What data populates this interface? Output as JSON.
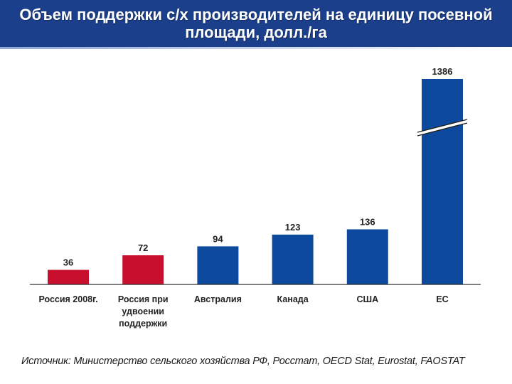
{
  "header": {
    "title": "Объем поддержки с/х производителей на единицу посевной\nплощади, долл./га"
  },
  "colors": {
    "title_bg": "#1c3f8c",
    "russia_bar": "#c8102e",
    "other_bar": "#0d4a9e"
  },
  "chart_data": {
    "type": "bar",
    "title": "Объем поддержки с/х производителей на единицу посевной площади, долл./га",
    "categories": [
      [
        "Россия 2008г."
      ],
      [
        "Россия при",
        "удвоении",
        "поддержки"
      ],
      [
        "Австралия"
      ],
      [
        "Канада"
      ],
      [
        "США"
      ],
      [
        "ЕС"
      ]
    ],
    "values": [
      36,
      72,
      94,
      123,
      136,
      1386
    ],
    "bar_colors": [
      "#c8102e",
      "#c8102e",
      "#0d4a9e",
      "#0d4a9e",
      "#0d4a9e",
      "#0d4a9e"
    ],
    "axis_break": {
      "category_index": 5,
      "note": "broken bar (value off scale)"
    },
    "ylim": [
      0,
      160
    ],
    "xlabel": "",
    "ylabel": "",
    "grid": false
  },
  "footer": {
    "source": "Источник: Министерство сельского хозяйства РФ, Росстат, OECD Stat, Eurostat, FAOSTAT"
  }
}
